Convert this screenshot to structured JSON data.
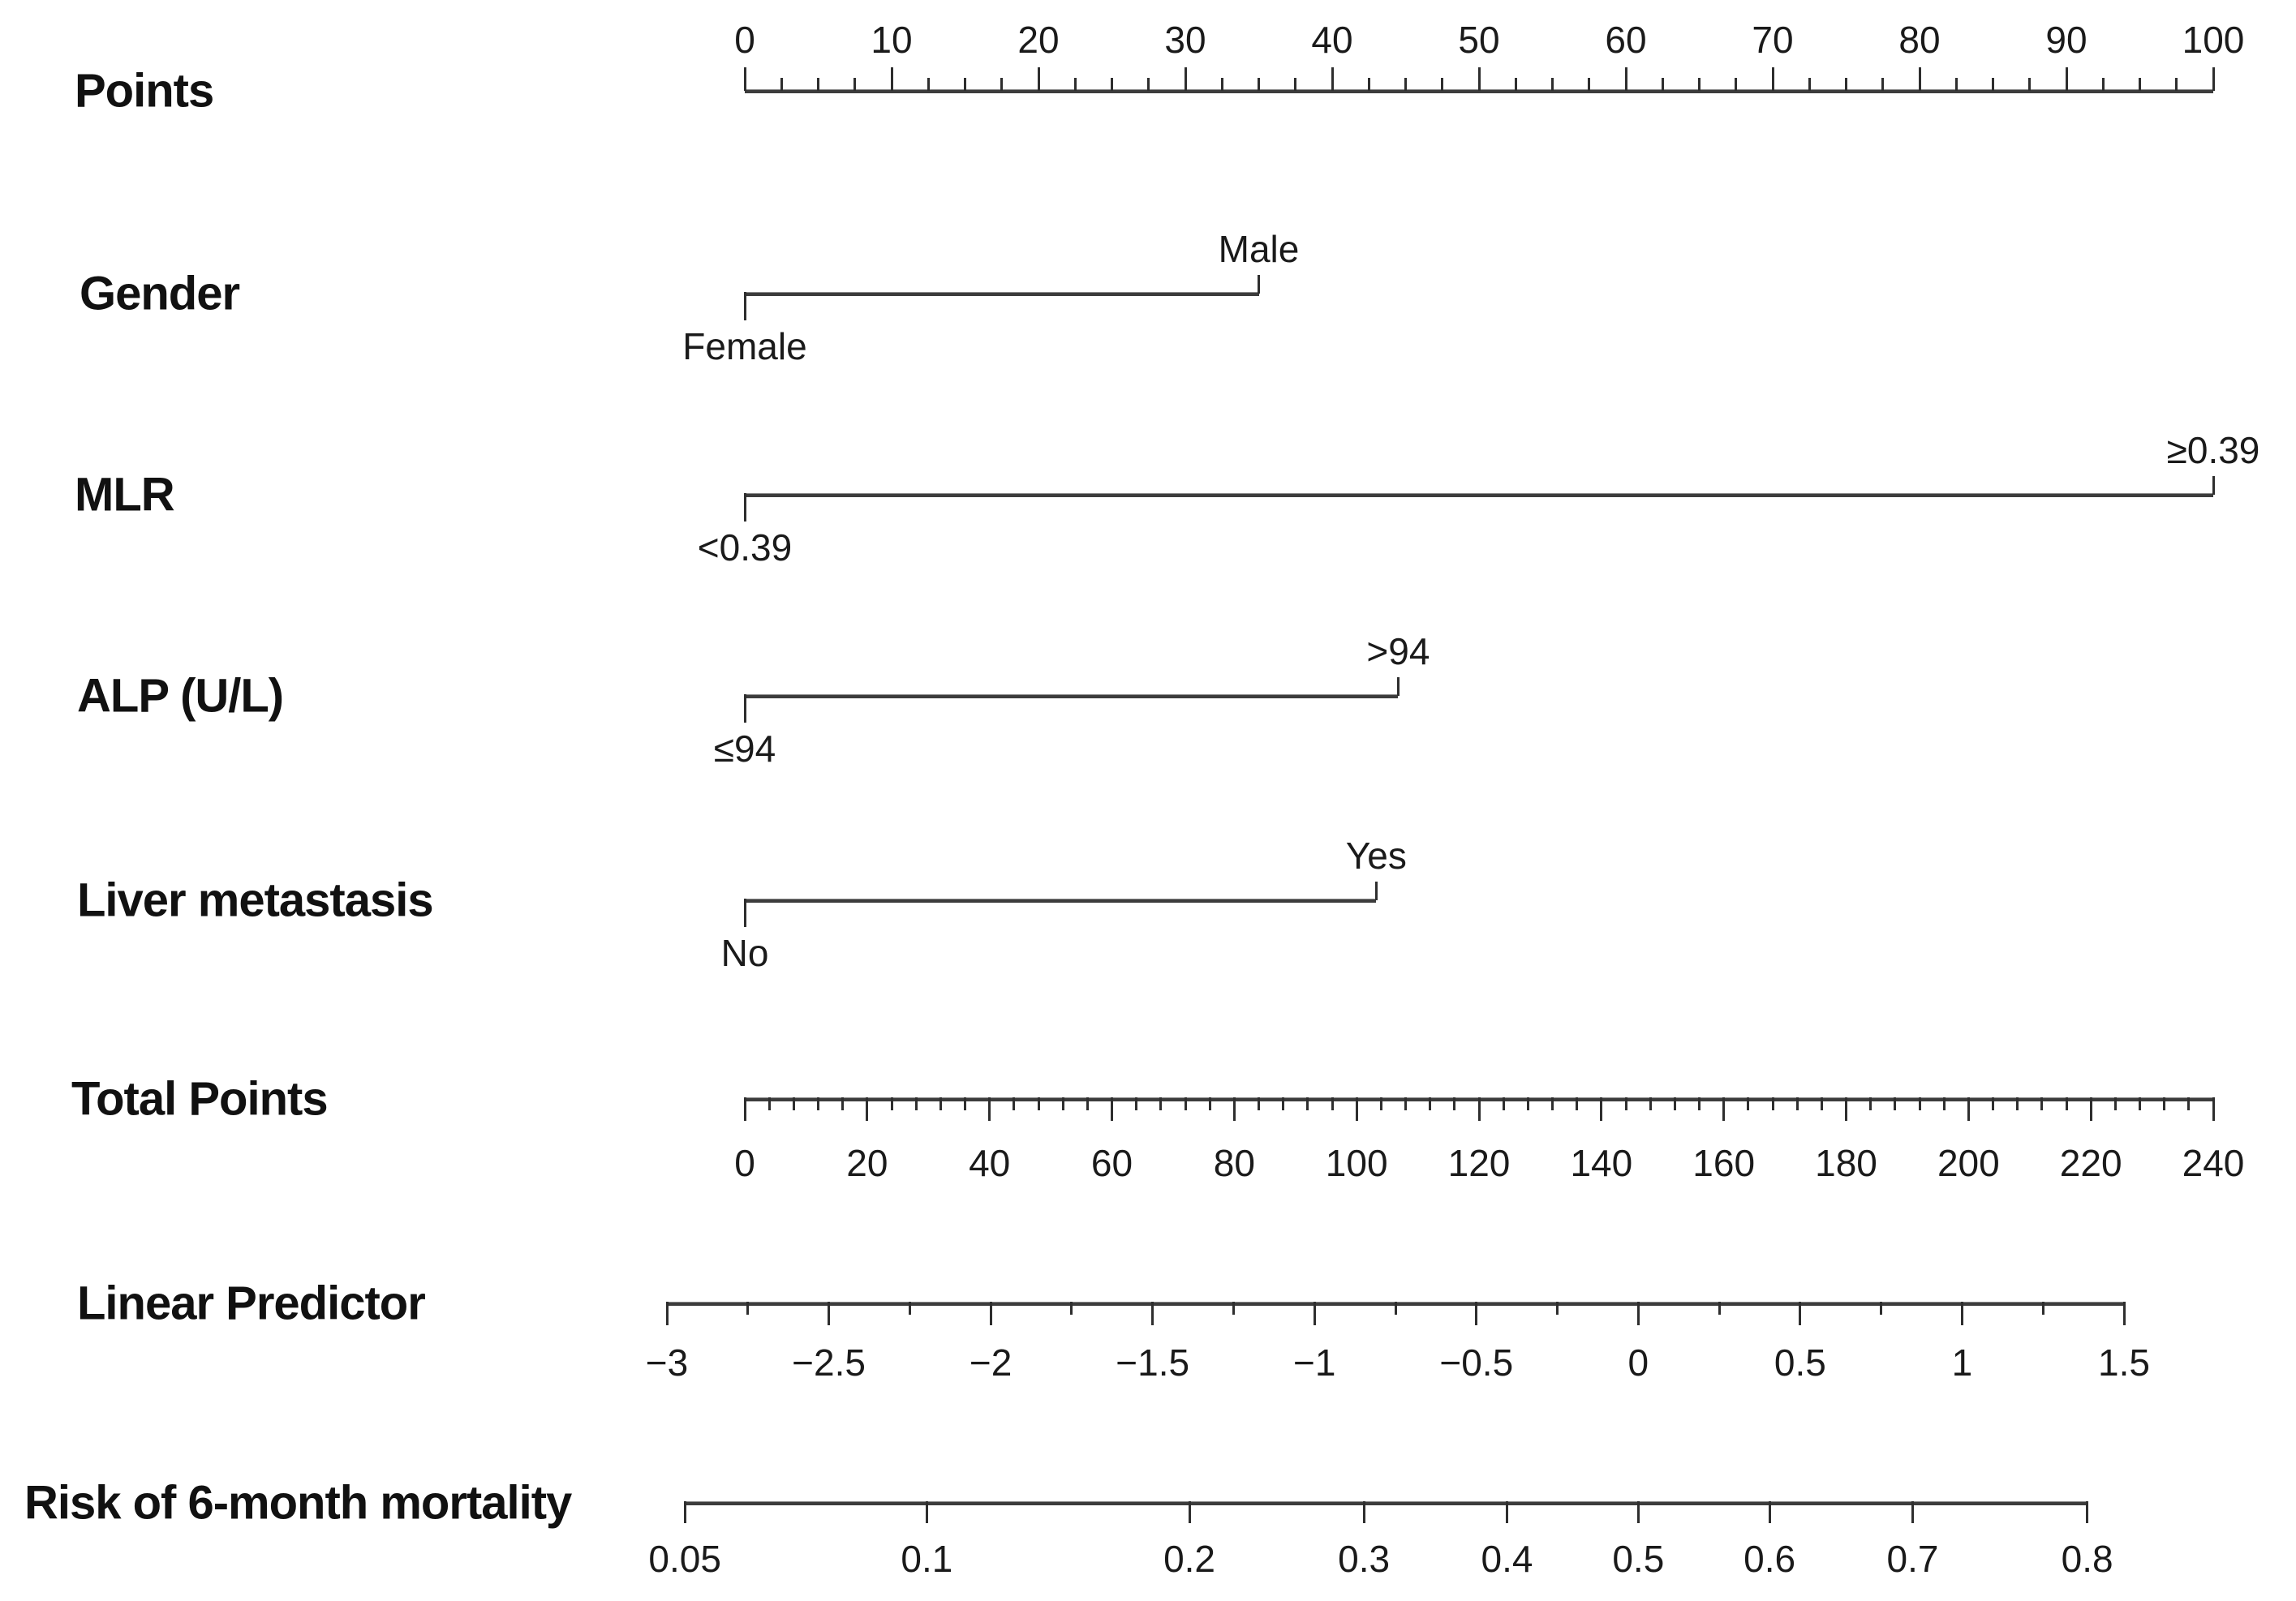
{
  "figure_title": "",
  "colors": {
    "axis_line": "#3c3c3c",
    "tick": "#2e2e2e",
    "text": "#1a1a1a"
  },
  "chart_data": {
    "type": "nomogram",
    "orientation": "horizontal",
    "points_axis_range": [
      0,
      100
    ],
    "rows": [
      {
        "id": "points",
        "label": "Points",
        "kind": "scale",
        "min": 0,
        "max": 100,
        "major_step": 10,
        "minor_step": 2.5,
        "tick_side": "up",
        "label_side": "above",
        "tick_labels": [
          "0",
          "10",
          "20",
          "30",
          "40",
          "50",
          "60",
          "70",
          "80",
          "90",
          "100"
        ]
      },
      {
        "id": "gender",
        "label": "Gender",
        "kind": "categorical",
        "categories": [
          {
            "name": "Female",
            "points": 0,
            "side": "below"
          },
          {
            "name": "Male",
            "points": 35,
            "side": "above"
          }
        ]
      },
      {
        "id": "mlr",
        "label": "MLR",
        "kind": "categorical",
        "categories": [
          {
            "name": "<0.39",
            "points": 0,
            "side": "below"
          },
          {
            "name": "≥0.39",
            "points": 100,
            "side": "above"
          }
        ]
      },
      {
        "id": "alp",
        "label": "ALP (U/L)",
        "kind": "categorical",
        "categories": [
          {
            "name": "≤94",
            "points": 0,
            "side": "below"
          },
          {
            "name": ">94",
            "points": 44.5,
            "side": "above"
          }
        ]
      },
      {
        "id": "liver",
        "label": "Liver metastasis",
        "kind": "categorical",
        "categories": [
          {
            "name": "No",
            "points": 0,
            "side": "below"
          },
          {
            "name": "Yes",
            "points": 43,
            "side": "above"
          }
        ]
      },
      {
        "id": "total",
        "label": "Total Points",
        "kind": "scale",
        "min": 0,
        "max": 240,
        "major_step": 20,
        "minor_step": 4,
        "tick_side": "down",
        "label_side": "below",
        "tick_labels": [
          "0",
          "20",
          "40",
          "60",
          "80",
          "100",
          "120",
          "140",
          "160",
          "180",
          "200",
          "220",
          "240"
        ]
      },
      {
        "id": "lp",
        "label": "Linear Predictor",
        "kind": "scale",
        "min": -3,
        "max": 1.5,
        "major_step": 0.5,
        "minor_step": 0.25,
        "tick_side": "down",
        "label_side": "below",
        "tick_labels": [
          "−3",
          "−2.5",
          "−2",
          "−1.5",
          "−1",
          "−0.5",
          "0",
          "0.5",
          "1",
          "1.5"
        ]
      },
      {
        "id": "risk",
        "label": "Risk of 6-month mortality",
        "kind": "probability",
        "transform": "logit",
        "mapped_to_row": "lp",
        "ticks": [
          {
            "label": "0.05",
            "value": 0.05
          },
          {
            "label": "0.1",
            "value": 0.1
          },
          {
            "label": "0.2",
            "value": 0.2
          },
          {
            "label": "0.3",
            "value": 0.3
          },
          {
            "label": "0.4",
            "value": 0.4
          },
          {
            "label": "0.5",
            "value": 0.5
          },
          {
            "label": "0.6",
            "value": 0.6
          },
          {
            "label": "0.7",
            "value": 0.7
          },
          {
            "label": "0.8",
            "value": 0.8
          }
        ]
      }
    ]
  }
}
